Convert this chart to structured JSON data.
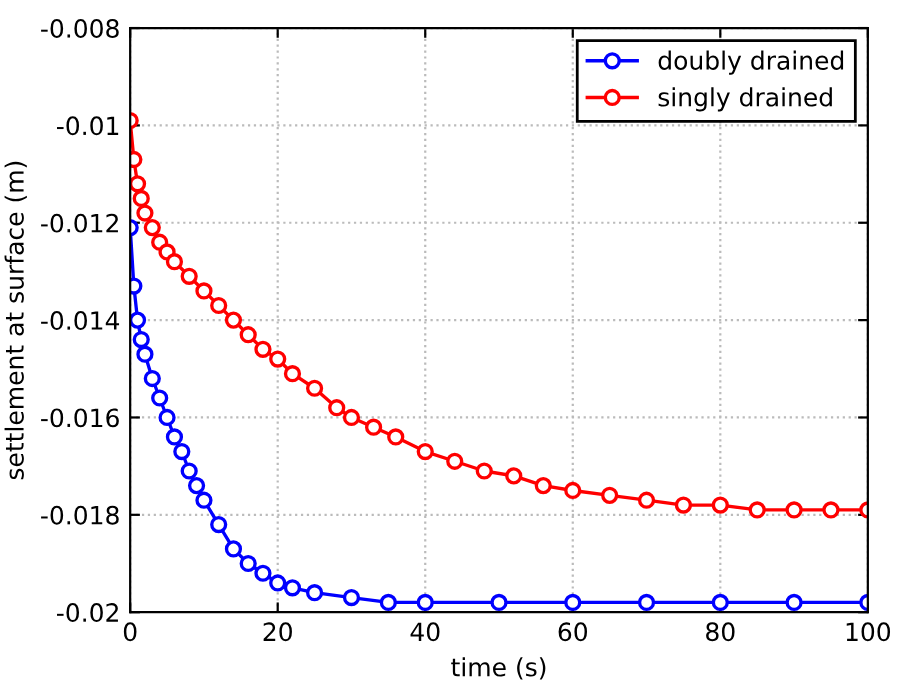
{
  "chart_data": {
    "type": "line",
    "xlabel": "time (s)",
    "ylabel": "settlement at surface (m)",
    "xlim": [
      0,
      100
    ],
    "ylim": [
      -0.02,
      -0.008
    ],
    "xticks": [
      0,
      20,
      40,
      60,
      80,
      100
    ],
    "yticks": [
      -0.02,
      -0.018,
      -0.016,
      -0.014,
      -0.012,
      -0.01,
      -0.008
    ],
    "grid": true,
    "legend": "top right",
    "marker": "circle",
    "line_style": "solid",
    "series": [
      {
        "name": "doubly drained",
        "color": "#0000ff",
        "x": [
          0,
          0.5,
          1,
          1.5,
          2,
          3,
          4,
          5,
          6,
          7,
          8,
          9,
          10,
          12,
          14,
          16,
          18,
          20,
          22,
          25,
          30,
          35,
          40,
          50,
          60,
          70,
          80,
          90,
          100
        ],
        "values": [
          -0.0121,
          -0.0133,
          -0.014,
          -0.0144,
          -0.0147,
          -0.0152,
          -0.0156,
          -0.016,
          -0.0164,
          -0.0167,
          -0.0171,
          -0.0174,
          -0.0177,
          -0.0182,
          -0.0187,
          -0.019,
          -0.0192,
          -0.0194,
          -0.0195,
          -0.0196,
          -0.0197,
          -0.0198,
          -0.0198,
          -0.0198,
          -0.0198,
          -0.0198,
          -0.0198,
          -0.0198,
          -0.0198
        ]
      },
      {
        "name": "singly drained",
        "color": "#ff0000",
        "x": [
          0,
          0.5,
          1,
          1.5,
          2,
          3,
          4,
          5,
          6,
          8,
          10,
          12,
          14,
          16,
          18,
          20,
          22,
          25,
          28,
          30,
          33,
          36,
          40,
          44,
          48,
          52,
          56,
          60,
          65,
          70,
          75,
          80,
          85,
          90,
          95,
          100
        ],
        "values": [
          -0.0099,
          -0.0107,
          -0.0112,
          -0.0115,
          -0.0118,
          -0.0121,
          -0.0124,
          -0.0126,
          -0.0128,
          -0.0131,
          -0.0134,
          -0.0137,
          -0.014,
          -0.0143,
          -0.0146,
          -0.0148,
          -0.0151,
          -0.0154,
          -0.0158,
          -0.016,
          -0.0162,
          -0.0164,
          -0.0167,
          -0.0169,
          -0.0171,
          -0.0172,
          -0.0174,
          -0.0175,
          -0.0176,
          -0.0177,
          -0.0178,
          -0.0178,
          -0.0179,
          -0.0179,
          -0.0179,
          -0.0179
        ]
      }
    ]
  }
}
